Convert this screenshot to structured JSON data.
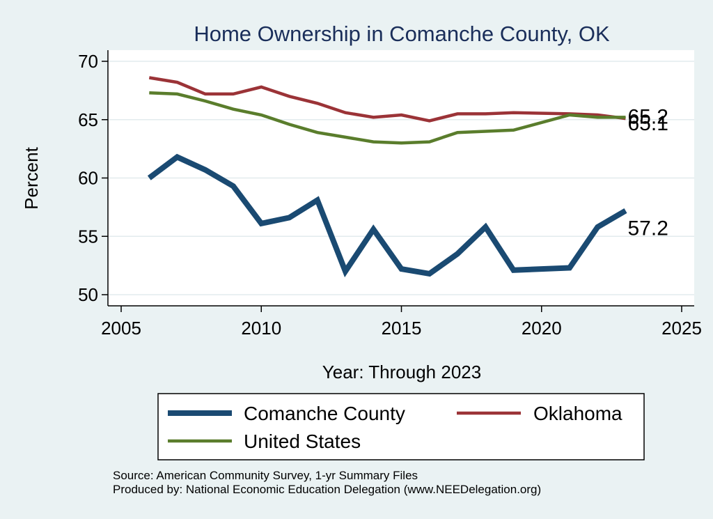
{
  "chart_data": {
    "type": "line",
    "title": "Home Ownership in Comanche County, OK",
    "xlabel": "Year: Through 2023",
    "ylabel": "Percent",
    "xlim": [
      2005,
      2025
    ],
    "ylim": [
      49.5,
      70.5
    ],
    "xticks": [
      2005,
      2010,
      2015,
      2020,
      2025
    ],
    "yticks": [
      50,
      55,
      60,
      65,
      70
    ],
    "grid": true,
    "legend_position": "bottom",
    "series": [
      {
        "name": "Comanche County",
        "color": "#1a4a72",
        "x": [
          2006,
          2007,
          2008,
          2009,
          2010,
          2011,
          2012,
          2013,
          2014,
          2015,
          2016,
          2017,
          2018,
          2019,
          2021,
          2022,
          2023
        ],
        "values": [
          60.0,
          61.8,
          60.7,
          59.3,
          56.1,
          56.6,
          58.1,
          52.0,
          55.6,
          52.2,
          51.8,
          53.5,
          55.8,
          52.1,
          52.3,
          55.8,
          57.2
        ],
        "end_label": "57.2"
      },
      {
        "name": "Oklahoma",
        "color": "#9b3337",
        "x": [
          2006,
          2007,
          2008,
          2009,
          2010,
          2011,
          2012,
          2013,
          2014,
          2015,
          2016,
          2017,
          2018,
          2019,
          2021,
          2022,
          2023
        ],
        "values": [
          68.6,
          68.2,
          67.2,
          67.2,
          67.8,
          67.0,
          66.4,
          65.6,
          65.2,
          65.4,
          64.9,
          65.5,
          65.5,
          65.6,
          65.5,
          65.4,
          65.1
        ],
        "end_label": "65.1"
      },
      {
        "name": "United States",
        "color": "#5a7d2c",
        "x": [
          2006,
          2007,
          2008,
          2009,
          2010,
          2011,
          2012,
          2013,
          2014,
          2015,
          2016,
          2017,
          2018,
          2019,
          2021,
          2022,
          2023
        ],
        "values": [
          67.3,
          67.2,
          66.6,
          65.9,
          65.4,
          64.6,
          63.9,
          63.5,
          63.1,
          63.0,
          63.1,
          63.9,
          64.0,
          64.1,
          65.4,
          65.2,
          65.2
        ],
        "end_label": "65.2"
      }
    ]
  },
  "source_line": "Source: American Community Survey, 1-yr Summary Files",
  "produced_line": "Produced by: National Economic Education Delegation (www.NEEDelegation.org)"
}
